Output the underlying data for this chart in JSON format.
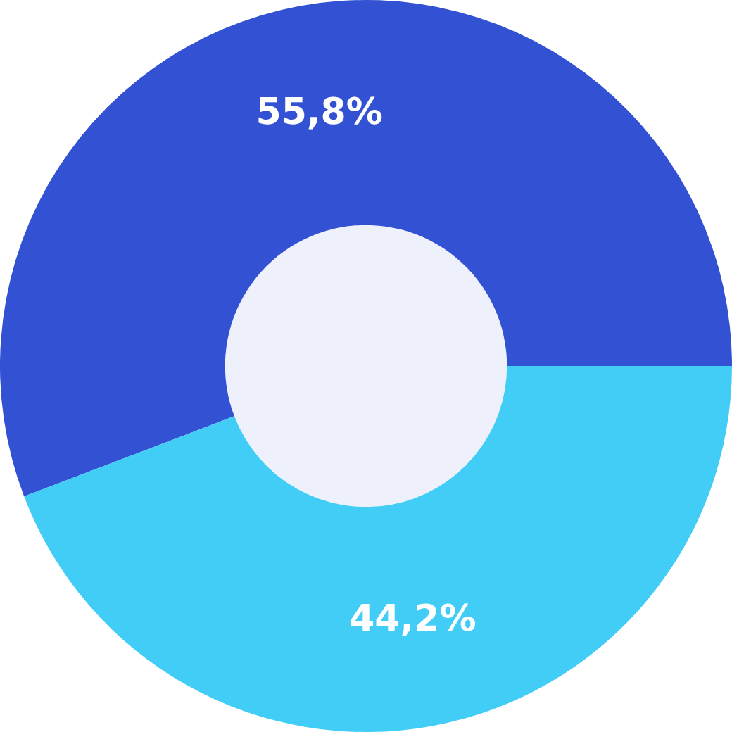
{
  "chart_data": {
    "type": "donut",
    "categories": [
      null,
      null
    ],
    "values": [
      55.8,
      44.2
    ],
    "colors": [
      "#3351d3",
      "#42cdf7"
    ],
    "value_labels": [
      "55,8%",
      "44,2%"
    ]
  }
}
